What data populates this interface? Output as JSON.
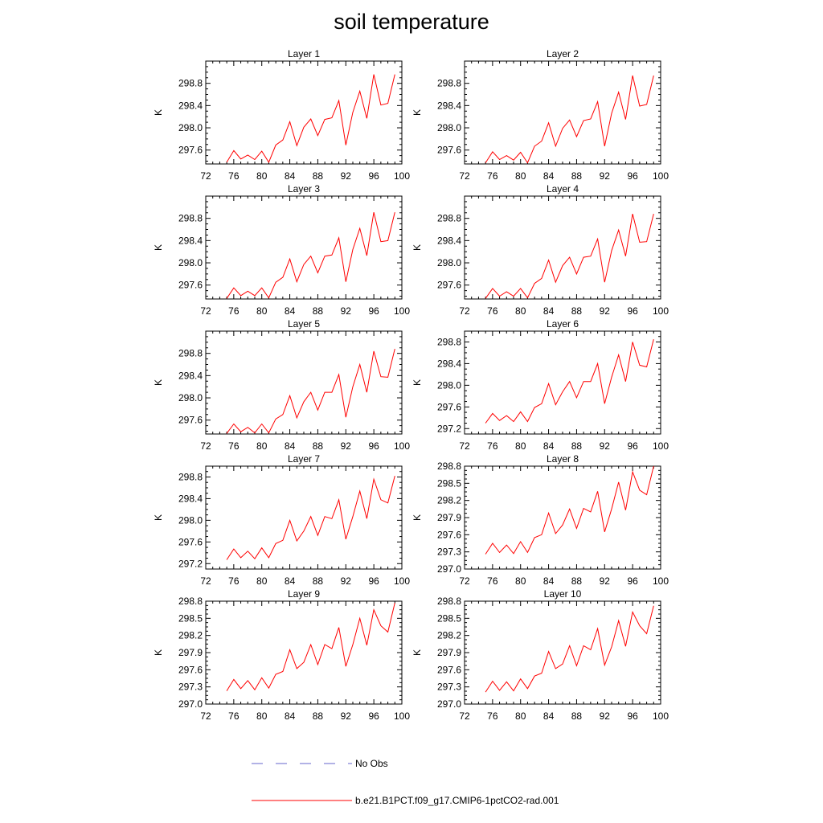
{
  "figure": {
    "title": "soil temperature"
  },
  "chart_data": [
    {
      "type": "line",
      "title": "Layer 1",
      "ylabel": "K",
      "xlim": [
        72,
        100
      ],
      "ylim": [
        297.35,
        299.2
      ],
      "xticks": [
        "72",
        "76",
        "80",
        "84",
        "88",
        "92",
        "96",
        "100"
      ],
      "yticks": [
        297.6,
        298.0,
        298.4,
        298.8
      ],
      "ytick_labels": [
        "297.6",
        "298.0",
        "298.4",
        "298.8"
      ],
      "series": [
        {
          "name": "b.e21.B1PCT.f09_g17.CMIP6-1pctCO2-rad.001",
          "color": "#ff0000",
          "x": [
            75,
            76,
            77,
            78,
            79,
            80,
            81,
            82,
            83,
            84,
            85,
            86,
            87,
            88,
            89,
            90,
            91,
            92,
            93,
            94,
            95,
            96,
            97,
            98,
            99
          ],
          "y": [
            297.38,
            297.59,
            297.44,
            297.51,
            297.43,
            297.58,
            297.38,
            297.69,
            297.78,
            298.11,
            297.68,
            298.01,
            298.16,
            297.86,
            298.15,
            298.18,
            298.49,
            297.69,
            298.28,
            298.66,
            298.17,
            298.96,
            298.41,
            298.44,
            298.96
          ]
        }
      ]
    },
    {
      "type": "line",
      "title": "Layer 2",
      "ylabel": "K",
      "xlim": [
        72,
        100
      ],
      "ylim": [
        297.35,
        299.2
      ],
      "xticks": [
        "72",
        "76",
        "80",
        "84",
        "88",
        "92",
        "96",
        "100"
      ],
      "yticks": [
        297.6,
        298.0,
        298.4,
        298.8
      ],
      "ytick_labels": [
        "297.6",
        "298.0",
        "298.4",
        "298.8"
      ],
      "series": [
        {
          "name": "b.e21.B1PCT.f09_g17.CMIP6-1pctCO2-rad.001",
          "color": "#ff0000",
          "x": [
            75,
            76,
            77,
            78,
            79,
            80,
            81,
            82,
            83,
            84,
            85,
            86,
            87,
            88,
            89,
            90,
            91,
            92,
            93,
            94,
            95,
            96,
            97,
            98,
            99
          ],
          "y": [
            297.37,
            297.57,
            297.43,
            297.5,
            297.42,
            297.56,
            297.37,
            297.67,
            297.76,
            298.09,
            297.67,
            297.99,
            298.14,
            297.84,
            298.13,
            298.16,
            298.47,
            297.67,
            298.26,
            298.64,
            298.15,
            298.94,
            298.39,
            298.42,
            298.94
          ]
        }
      ]
    },
    {
      "type": "line",
      "title": "Layer 3",
      "ylabel": "K",
      "xlim": [
        72,
        100
      ],
      "ylim": [
        297.35,
        299.2
      ],
      "xticks": [
        "72",
        "76",
        "80",
        "84",
        "88",
        "92",
        "96",
        "100"
      ],
      "yticks": [
        297.6,
        298.0,
        298.4,
        298.8
      ],
      "ytick_labels": [
        "297.6",
        "298.0",
        "298.4",
        "298.8"
      ],
      "series": [
        {
          "name": "b.e21.B1PCT.f09_g17.CMIP6-1pctCO2-rad.001",
          "color": "#ff0000",
          "x": [
            75,
            76,
            77,
            78,
            79,
            80,
            81,
            82,
            83,
            84,
            85,
            86,
            87,
            88,
            89,
            90,
            91,
            92,
            93,
            94,
            95,
            96,
            97,
            98,
            99
          ],
          "y": [
            297.36,
            297.55,
            297.41,
            297.49,
            297.41,
            297.55,
            297.37,
            297.65,
            297.74,
            298.07,
            297.66,
            297.97,
            298.12,
            297.82,
            298.12,
            298.14,
            298.45,
            297.66,
            298.24,
            298.62,
            298.13,
            298.91,
            298.38,
            298.4,
            298.91
          ]
        }
      ]
    },
    {
      "type": "line",
      "title": "Layer 4",
      "ylabel": "K",
      "xlim": [
        72,
        100
      ],
      "ylim": [
        297.35,
        299.2
      ],
      "xticks": [
        "72",
        "76",
        "80",
        "84",
        "88",
        "92",
        "96",
        "100"
      ],
      "yticks": [
        297.6,
        298.0,
        298.4,
        298.8
      ],
      "ytick_labels": [
        "297.6",
        "298.0",
        "298.4",
        "298.8"
      ],
      "series": [
        {
          "name": "b.e21.B1PCT.f09_g17.CMIP6-1pctCO2-rad.001",
          "color": "#ff0000",
          "x": [
            75,
            76,
            77,
            78,
            79,
            80,
            81,
            82,
            83,
            84,
            85,
            86,
            87,
            88,
            89,
            90,
            91,
            92,
            93,
            94,
            95,
            96,
            97,
            98,
            99
          ],
          "y": [
            297.36,
            297.54,
            297.4,
            297.48,
            297.4,
            297.54,
            297.37,
            297.63,
            297.72,
            298.05,
            297.65,
            297.95,
            298.1,
            297.8,
            298.1,
            298.12,
            298.43,
            297.65,
            298.22,
            298.59,
            298.12,
            298.88,
            298.37,
            298.38,
            298.88
          ]
        }
      ]
    },
    {
      "type": "line",
      "title": "Layer 5",
      "ylabel": "K",
      "xlim": [
        72,
        100
      ],
      "ylim": [
        297.35,
        299.2
      ],
      "xticks": [
        "72",
        "76",
        "80",
        "84",
        "88",
        "92",
        "96",
        "100"
      ],
      "yticks": [
        297.6,
        298.0,
        298.4,
        298.8
      ],
      "ytick_labels": [
        "297.6",
        "298.0",
        "298.4",
        "298.8"
      ],
      "series": [
        {
          "name": "b.e21.B1PCT.f09_g17.CMIP6-1pctCO2-rad.001",
          "color": "#ff0000",
          "x": [
            75,
            76,
            77,
            78,
            79,
            80,
            81,
            82,
            83,
            84,
            85,
            86,
            87,
            88,
            89,
            90,
            91,
            92,
            93,
            94,
            95,
            96,
            97,
            98,
            99
          ],
          "y": [
            297.36,
            297.53,
            297.39,
            297.47,
            297.37,
            297.53,
            297.37,
            297.62,
            297.7,
            298.04,
            297.64,
            297.93,
            298.1,
            297.78,
            298.1,
            298.1,
            298.42,
            297.65,
            298.2,
            298.6,
            298.1,
            298.84,
            298.38,
            298.37,
            298.88
          ]
        }
      ]
    },
    {
      "type": "line",
      "title": "Layer 6",
      "ylabel": "K",
      "xlim": [
        72,
        100
      ],
      "ylim": [
        297.1,
        299.0
      ],
      "xticks": [
        "72",
        "76",
        "80",
        "84",
        "88",
        "92",
        "96",
        "100"
      ],
      "yticks": [
        297.2,
        297.6,
        298.0,
        298.4,
        298.8
      ],
      "ytick_labels": [
        "297.2",
        "297.6",
        "298.0",
        "298.4",
        "298.8"
      ],
      "series": [
        {
          "name": "b.e21.B1PCT.f09_g17.CMIP6-1pctCO2-rad.001",
          "color": "#ff0000",
          "x": [
            75,
            76,
            77,
            78,
            79,
            80,
            81,
            82,
            83,
            84,
            85,
            86,
            87,
            88,
            89,
            90,
            91,
            92,
            93,
            94,
            95,
            96,
            97,
            98,
            99
          ],
          "y": [
            297.3,
            297.48,
            297.35,
            297.44,
            297.33,
            297.51,
            297.33,
            297.59,
            297.66,
            298.03,
            297.64,
            297.88,
            298.07,
            297.77,
            298.07,
            298.07,
            298.4,
            297.66,
            298.15,
            298.56,
            298.07,
            298.8,
            298.37,
            298.34,
            298.85
          ]
        }
      ]
    },
    {
      "type": "line",
      "title": "Layer 7",
      "ylabel": "K",
      "xlim": [
        72,
        100
      ],
      "ylim": [
        297.1,
        299.0
      ],
      "xticks": [
        "72",
        "76",
        "80",
        "84",
        "88",
        "92",
        "96",
        "100"
      ],
      "yticks": [
        297.2,
        297.6,
        298.0,
        298.4,
        298.8
      ],
      "ytick_labels": [
        "297.2",
        "297.6",
        "298.0",
        "298.4",
        "298.8"
      ],
      "series": [
        {
          "name": "b.e21.B1PCT.f09_g17.CMIP6-1pctCO2-rad.001",
          "color": "#ff0000",
          "x": [
            75,
            76,
            77,
            78,
            79,
            80,
            81,
            82,
            83,
            84,
            85,
            86,
            87,
            88,
            89,
            90,
            91,
            92,
            93,
            94,
            95,
            96,
            97,
            98,
            99
          ],
          "y": [
            297.27,
            297.47,
            297.31,
            297.43,
            297.29,
            297.49,
            297.31,
            297.57,
            297.63,
            298.0,
            297.62,
            297.8,
            298.07,
            297.72,
            298.07,
            298.03,
            298.38,
            297.65,
            298.07,
            298.54,
            298.03,
            298.76,
            298.38,
            298.32,
            298.82
          ]
        }
      ]
    },
    {
      "type": "line",
      "title": "Layer 8",
      "ylabel": "K",
      "xlim": [
        72,
        100
      ],
      "ylim": [
        297.0,
        298.8
      ],
      "xticks": [
        "72",
        "76",
        "80",
        "84",
        "88",
        "92",
        "96",
        "100"
      ],
      "yticks": [
        297.0,
        297.3,
        297.6,
        297.9,
        298.2,
        298.5,
        298.8
      ],
      "ytick_labels": [
        "297.0",
        "297.3",
        "297.6",
        "297.9",
        "298.2",
        "298.5",
        "298.8"
      ],
      "series": [
        {
          "name": "b.e21.B1PCT.f09_g17.CMIP6-1pctCO2-rad.001",
          "color": "#ff0000",
          "x": [
            75,
            76,
            77,
            78,
            79,
            80,
            81,
            82,
            83,
            84,
            85,
            86,
            87,
            88,
            89,
            90,
            91,
            92,
            93,
            94,
            95,
            96,
            97,
            98,
            99
          ],
          "y": [
            297.26,
            297.45,
            297.29,
            297.42,
            297.27,
            297.48,
            297.29,
            297.55,
            297.6,
            297.98,
            297.62,
            297.77,
            298.05,
            297.71,
            298.06,
            298.0,
            298.36,
            297.65,
            298.05,
            298.52,
            298.03,
            298.7,
            298.38,
            298.3,
            298.8
          ]
        }
      ]
    },
    {
      "type": "line",
      "title": "Layer 9",
      "ylabel": "K",
      "xlim": [
        72,
        100
      ],
      "ylim": [
        297.0,
        298.8
      ],
      "xticks": [
        "72",
        "76",
        "80",
        "84",
        "88",
        "92",
        "96",
        "100"
      ],
      "yticks": [
        297.0,
        297.3,
        297.6,
        297.9,
        298.2,
        298.5,
        298.8
      ],
      "ytick_labels": [
        "297.0",
        "297.3",
        "297.6",
        "297.9",
        "298.2",
        "298.5",
        "298.8"
      ],
      "series": [
        {
          "name": "b.e21.B1PCT.f09_g17.CMIP6-1pctCO2-rad.001",
          "color": "#ff0000",
          "x": [
            75,
            76,
            77,
            78,
            79,
            80,
            81,
            82,
            83,
            84,
            85,
            86,
            87,
            88,
            89,
            90,
            91,
            92,
            93,
            94,
            95,
            96,
            97,
            98,
            99
          ],
          "y": [
            297.23,
            297.43,
            297.27,
            297.41,
            297.25,
            297.46,
            297.28,
            297.52,
            297.57,
            297.95,
            297.62,
            297.73,
            298.04,
            297.69,
            298.04,
            297.97,
            298.34,
            297.66,
            298.04,
            298.5,
            298.03,
            298.65,
            298.37,
            298.26,
            298.77
          ]
        }
      ]
    },
    {
      "type": "line",
      "title": "Layer 10",
      "ylabel": "K",
      "xlim": [
        72,
        100
      ],
      "ylim": [
        297.0,
        298.8
      ],
      "xticks": [
        "72",
        "76",
        "80",
        "84",
        "88",
        "92",
        "96",
        "100"
      ],
      "yticks": [
        297.0,
        297.3,
        297.6,
        297.9,
        298.2,
        298.5,
        298.8
      ],
      "ytick_labels": [
        "297.0",
        "297.3",
        "297.6",
        "297.9",
        "298.2",
        "298.5",
        "298.8"
      ],
      "series": [
        {
          "name": "b.e21.B1PCT.f09_g17.CMIP6-1pctCO2-rad.001",
          "color": "#ff0000",
          "x": [
            75,
            76,
            77,
            78,
            79,
            80,
            81,
            82,
            83,
            84,
            85,
            86,
            87,
            88,
            89,
            90,
            91,
            92,
            93,
            94,
            95,
            96,
            97,
            98,
            99
          ],
          "y": [
            297.21,
            297.4,
            297.24,
            297.39,
            297.23,
            297.44,
            297.27,
            297.49,
            297.54,
            297.92,
            297.62,
            297.7,
            298.02,
            297.67,
            298.02,
            297.95,
            298.32,
            297.68,
            298.0,
            298.46,
            298.01,
            298.61,
            298.37,
            298.23,
            298.72
          ]
        }
      ]
    }
  ],
  "legend": {
    "items": [
      {
        "label": "No Obs",
        "color": "#6666cc",
        "style": "dashed"
      },
      {
        "label": "b.e21.B1PCT.f09_g17.CMIP6-1pctCO2-rad.001",
        "color": "#ff0000",
        "style": "solid"
      }
    ]
  }
}
